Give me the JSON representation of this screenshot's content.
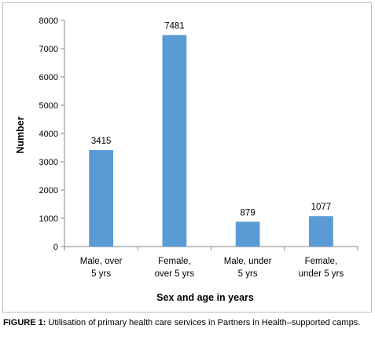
{
  "chart_data": {
    "type": "bar",
    "categories": [
      [
        "Male, over",
        "5 yrs"
      ],
      [
        "Female,",
        "over 5 yrs"
      ],
      [
        "Male, under",
        "5 yrs"
      ],
      [
        "Female,",
        "under 5 yrs"
      ]
    ],
    "values": [
      3415,
      7481,
      879,
      1077
    ],
    "data_labels": [
      "3415",
      "7481",
      "879",
      "1077"
    ],
    "xlabel": "Sex and age in years",
    "ylabel": "Number",
    "ylim": [
      0,
      8000
    ],
    "yticks": [
      0,
      1000,
      2000,
      3000,
      4000,
      5000,
      6000,
      7000,
      8000
    ],
    "grid": false,
    "legend": "none",
    "bar_color": "#5b9bd5"
  },
  "caption": {
    "label": "FIGURE 1:",
    "text": " Utilisation of primary health care services in Partners in Health–supported camps."
  }
}
